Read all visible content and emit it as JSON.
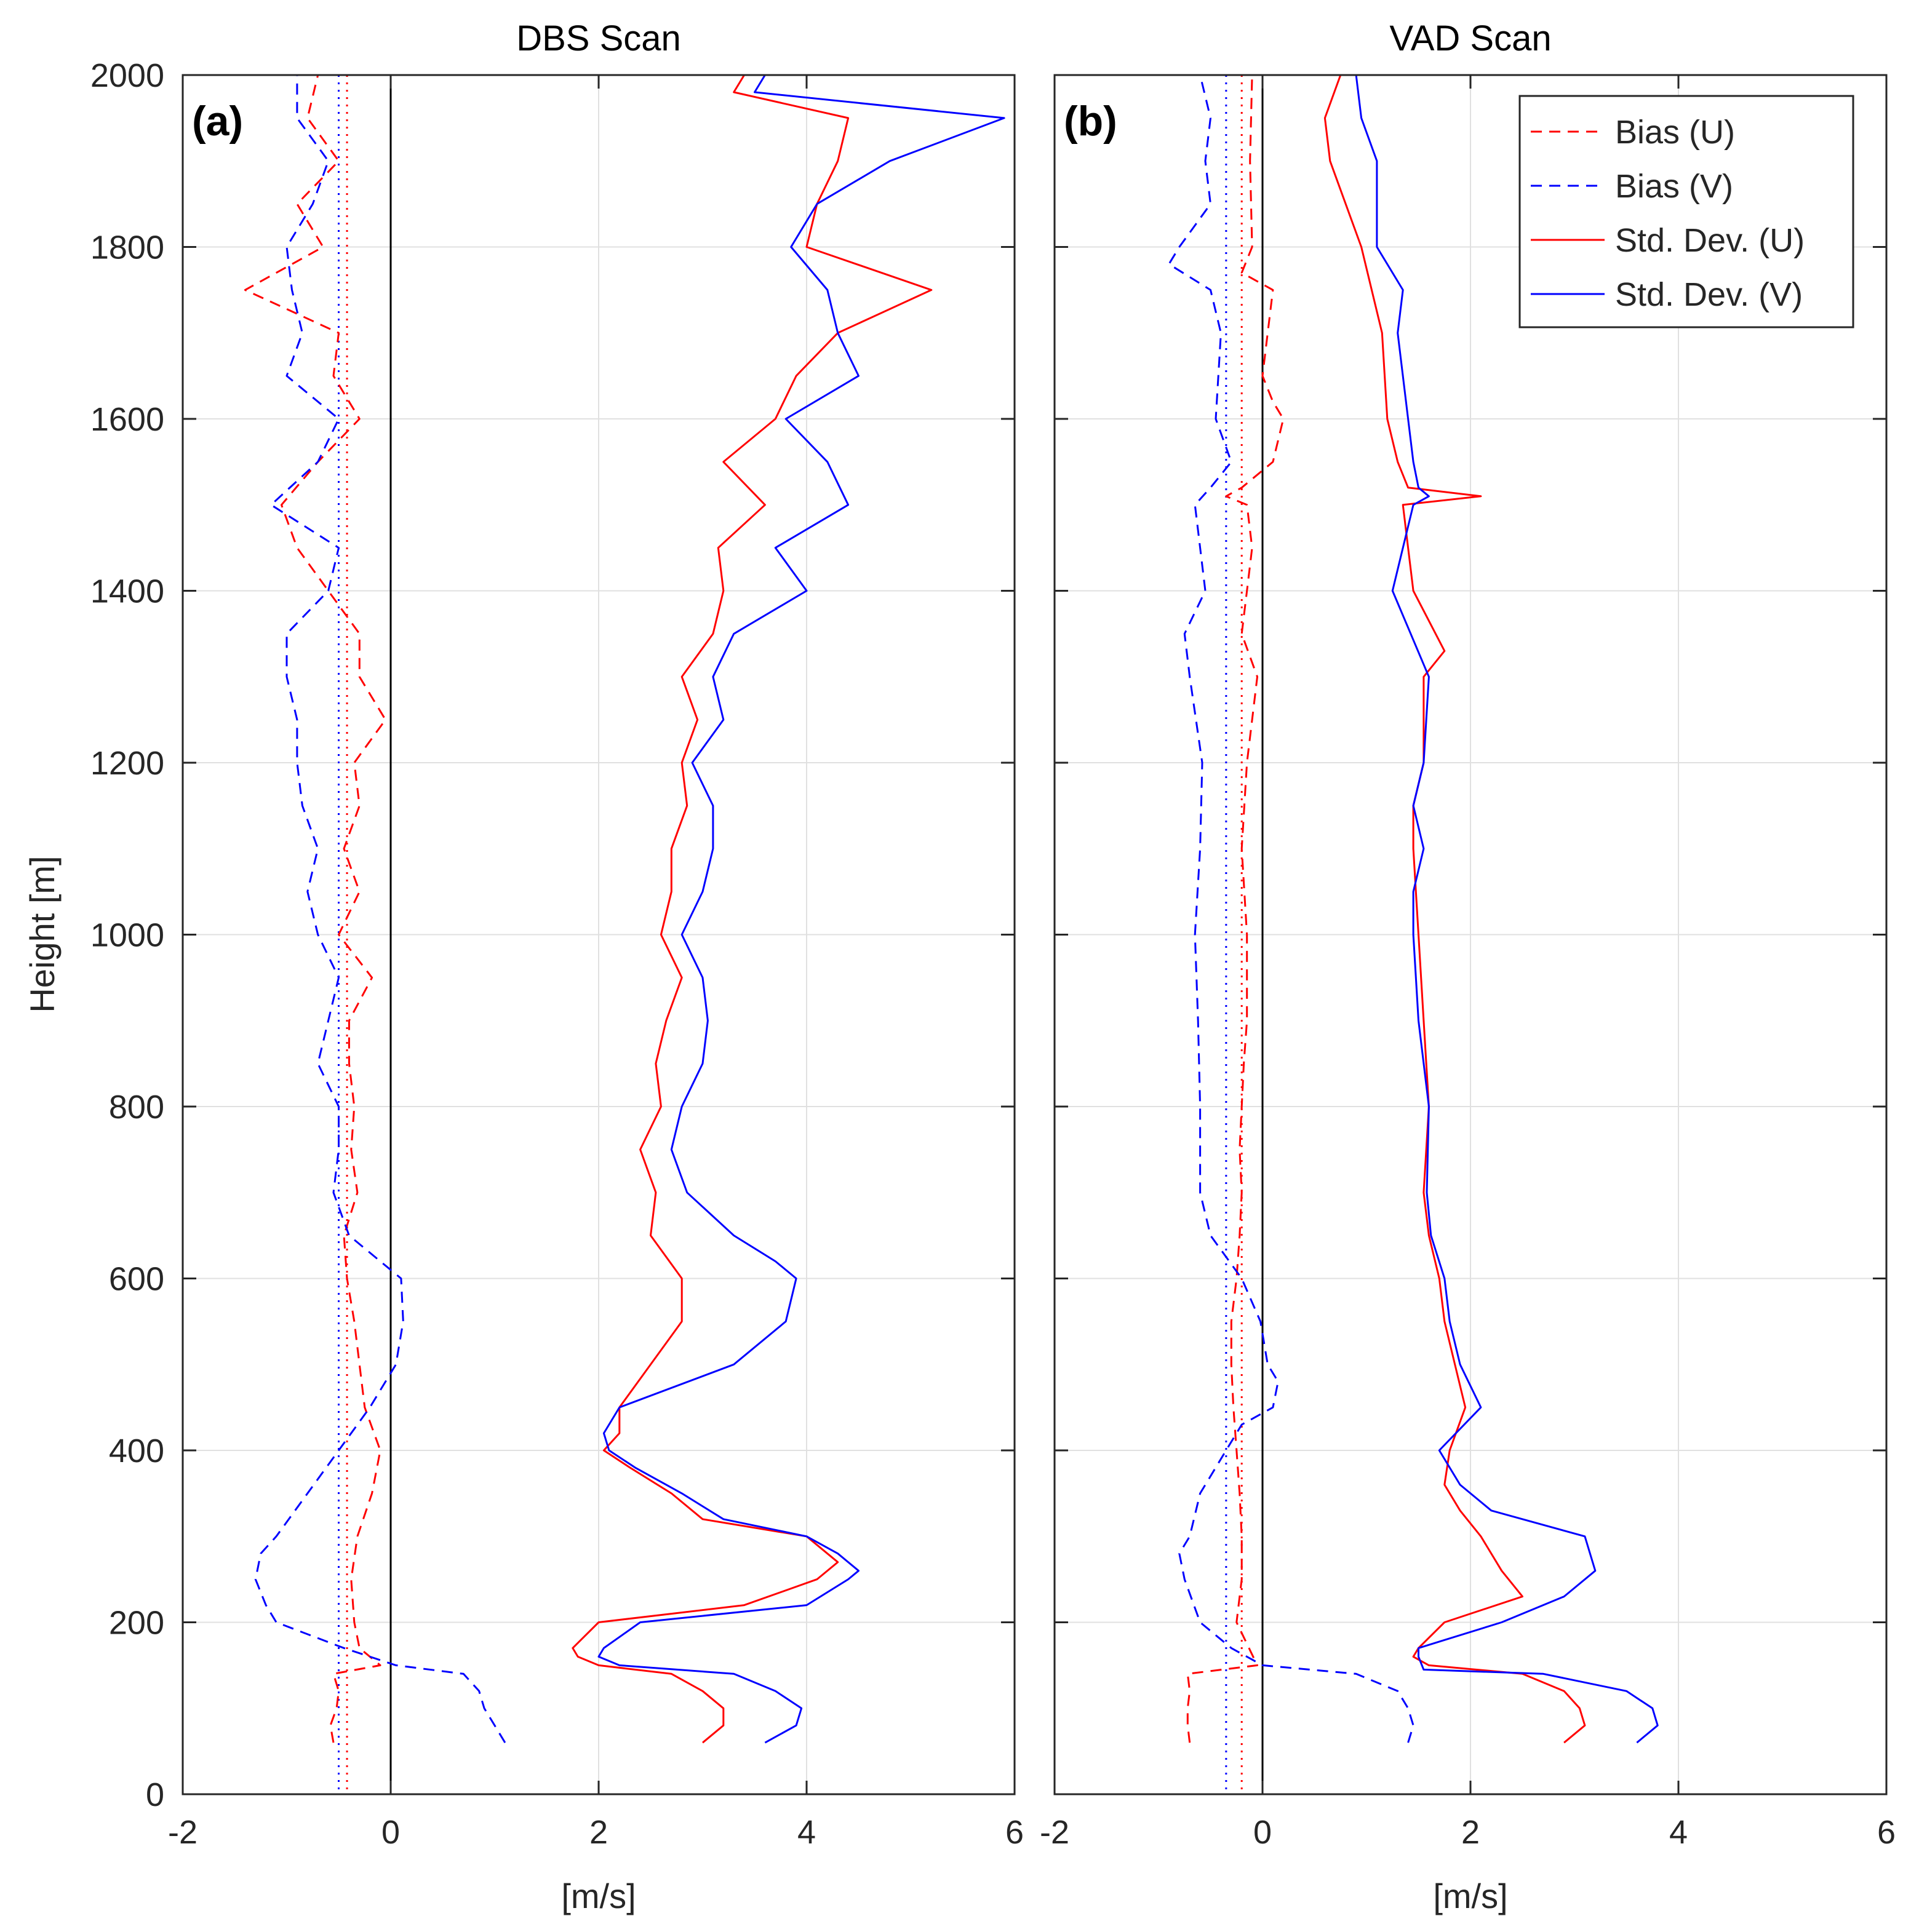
{
  "chart_data": [
    {
      "type": "line",
      "title": "DBS Scan",
      "panel_label": "(a)",
      "xlabel": "[m/s]",
      "ylabel": "Height [m]",
      "xlim": [
        -2,
        6
      ],
      "ylim": [
        0,
        2000
      ],
      "xticks": [
        "-2",
        "0",
        "2",
        "4",
        "6"
      ],
      "yticks": [
        "0",
        "200",
        "400",
        "600",
        "800",
        "1000",
        "1200",
        "1400",
        "1600",
        "1800",
        "2000"
      ],
      "grid": true,
      "mean_lines": [
        {
          "name": "Mean bias (U)",
          "x": -0.42,
          "color": "#ff0000"
        },
        {
          "name": "Mean bias (V)",
          "x": -0.5,
          "color": "#0000ff"
        }
      ],
      "series": [
        {
          "name": "Bias (U)",
          "color": "#ff0000",
          "style": "dashed",
          "height": [
            60,
            80,
            100,
            120,
            140,
            150,
            170,
            200,
            250,
            300,
            350,
            400,
            450,
            500,
            550,
            600,
            650,
            700,
            750,
            800,
            850,
            900,
            950,
            1000,
            1050,
            1100,
            1150,
            1200,
            1250,
            1300,
            1350,
            1400,
            1450,
            1500,
            1550,
            1600,
            1650,
            1700,
            1750,
            1800,
            1850,
            1900,
            1950,
            2000
          ],
          "values": [
            -0.55,
            -0.58,
            -0.52,
            -0.5,
            -0.55,
            -0.1,
            -0.3,
            -0.35,
            -0.38,
            -0.32,
            -0.18,
            -0.1,
            -0.25,
            -0.3,
            -0.35,
            -0.42,
            -0.45,
            -0.32,
            -0.38,
            -0.35,
            -0.4,
            -0.4,
            -0.18,
            -0.5,
            -0.3,
            -0.45,
            -0.3,
            -0.35,
            -0.05,
            -0.3,
            -0.3,
            -0.6,
            -0.9,
            -1.05,
            -0.7,
            -0.3,
            -0.55,
            -0.5,
            -1.4,
            -0.65,
            -0.9,
            -0.5,
            -0.8,
            -0.7
          ]
        },
        {
          "name": "Bias (V)",
          "color": "#0000ff",
          "style": "dashed",
          "height": [
            60,
            80,
            100,
            120,
            140,
            150,
            170,
            200,
            220,
            250,
            280,
            300,
            350,
            400,
            450,
            500,
            550,
            600,
            620,
            650,
            700,
            750,
            800,
            850,
            900,
            950,
            1000,
            1050,
            1100,
            1150,
            1200,
            1250,
            1300,
            1350,
            1400,
            1450,
            1500,
            1550,
            1600,
            1650,
            1700,
            1750,
            1800,
            1850,
            1900,
            1950,
            2000
          ],
          "values": [
            1.1,
            1.0,
            0.9,
            0.85,
            0.7,
            0.05,
            -0.45,
            -1.1,
            -1.2,
            -1.3,
            -1.25,
            -1.1,
            -0.8,
            -0.5,
            -0.2,
            0.05,
            0.12,
            0.1,
            -0.1,
            -0.4,
            -0.55,
            -0.5,
            -0.5,
            -0.7,
            -0.6,
            -0.5,
            -0.7,
            -0.8,
            -0.7,
            -0.85,
            -0.9,
            -0.9,
            -1.0,
            -1.0,
            -0.6,
            -0.5,
            -1.15,
            -0.7,
            -0.5,
            -1.0,
            -0.85,
            -0.95,
            -1.0,
            -0.75,
            -0.6,
            -0.9,
            -0.9
          ]
        },
        {
          "name": "Std. Dev. (U)",
          "color": "#ff0000",
          "style": "solid",
          "height": [
            60,
            80,
            100,
            120,
            140,
            150,
            160,
            170,
            200,
            220,
            250,
            270,
            300,
            320,
            350,
            380,
            400,
            420,
            450,
            500,
            550,
            600,
            650,
            700,
            750,
            800,
            850,
            900,
            950,
            1000,
            1050,
            1100,
            1150,
            1200,
            1250,
            1300,
            1350,
            1400,
            1450,
            1500,
            1550,
            1600,
            1650,
            1700,
            1750,
            1800,
            1850,
            1900,
            1950,
            1980,
            2000
          ],
          "values": [
            3.0,
            3.2,
            3.2,
            3.0,
            2.7,
            2.0,
            1.8,
            1.75,
            2.0,
            3.4,
            4.1,
            4.3,
            4.0,
            3.0,
            2.7,
            2.3,
            2.05,
            2.2,
            2.2,
            2.5,
            2.8,
            2.8,
            2.5,
            2.55,
            2.4,
            2.6,
            2.55,
            2.65,
            2.8,
            2.6,
            2.7,
            2.7,
            2.85,
            2.8,
            2.95,
            2.8,
            3.1,
            3.2,
            3.15,
            3.6,
            3.2,
            3.7,
            3.9,
            4.3,
            5.2,
            4.0,
            4.1,
            4.3,
            4.4,
            3.3,
            3.4
          ]
        },
        {
          "name": "Std. Dev. (V)",
          "color": "#0000ff",
          "style": "solid",
          "height": [
            60,
            80,
            100,
            120,
            140,
            150,
            160,
            170,
            200,
            220,
            250,
            260,
            280,
            300,
            320,
            350,
            380,
            400,
            420,
            450,
            500,
            550,
            600,
            620,
            650,
            700,
            750,
            800,
            850,
            900,
            950,
            1000,
            1050,
            1100,
            1150,
            1200,
            1250,
            1300,
            1350,
            1400,
            1450,
            1500,
            1550,
            1600,
            1650,
            1700,
            1750,
            1800,
            1850,
            1900,
            1950,
            1980,
            2000
          ],
          "values": [
            3.6,
            3.9,
            3.95,
            3.7,
            3.3,
            2.2,
            2.0,
            2.05,
            2.4,
            4.0,
            4.4,
            4.5,
            4.3,
            4.0,
            3.2,
            2.8,
            2.35,
            2.1,
            2.05,
            2.2,
            3.3,
            3.8,
            3.9,
            3.7,
            3.3,
            2.85,
            2.7,
            2.8,
            3.0,
            3.05,
            3.0,
            2.8,
            3.0,
            3.1,
            3.1,
            2.9,
            3.2,
            3.1,
            3.3,
            4.0,
            3.7,
            4.4,
            4.2,
            3.8,
            4.5,
            4.3,
            4.2,
            3.85,
            4.1,
            4.8,
            5.9,
            3.5,
            3.6
          ]
        }
      ]
    },
    {
      "type": "line",
      "title": "VAD Scan",
      "panel_label": "(b)",
      "xlabel": "[m/s]",
      "ylabel": "",
      "xlim": [
        -2,
        6
      ],
      "ylim": [
        0,
        2000
      ],
      "xticks": [
        "-2",
        "0",
        "2",
        "4",
        "6"
      ],
      "yticks": [
        "0",
        "200",
        "400",
        "600",
        "800",
        "1000",
        "1200",
        "1400",
        "1600",
        "1800",
        "2000"
      ],
      "grid": true,
      "mean_lines": [
        {
          "name": "Mean bias (U)",
          "x": -0.2,
          "color": "#ff0000"
        },
        {
          "name": "Mean bias (V)",
          "x": -0.35,
          "color": "#0000ff"
        }
      ],
      "series": [
        {
          "name": "Bias (U)",
          "color": "#ff0000",
          "style": "dashed",
          "height": [
            60,
            80,
            100,
            120,
            140,
            150,
            200,
            250,
            300,
            350,
            400,
            450,
            500,
            550,
            600,
            650,
            700,
            750,
            800,
            850,
            900,
            950,
            1000,
            1100,
            1200,
            1300,
            1350,
            1400,
            1450,
            1500,
            1510,
            1520,
            1550,
            1600,
            1620,
            1650,
            1700,
            1750,
            1770,
            1800,
            1900,
            2000
          ],
          "values": [
            -0.7,
            -0.72,
            -0.72,
            -0.7,
            -0.72,
            -0.05,
            -0.25,
            -0.2,
            -0.2,
            -0.22,
            -0.25,
            -0.28,
            -0.3,
            -0.3,
            -0.25,
            -0.22,
            -0.2,
            -0.22,
            -0.2,
            -0.18,
            -0.15,
            -0.15,
            -0.15,
            -0.2,
            -0.15,
            -0.05,
            -0.2,
            -0.15,
            -0.1,
            -0.15,
            -0.35,
            -0.2,
            0.1,
            0.2,
            0.1,
            0.0,
            0.05,
            0.1,
            -0.2,
            -0.1,
            -0.12,
            -0.1
          ]
        },
        {
          "name": "Bias (V)",
          "color": "#0000ff",
          "style": "dashed",
          "height": [
            60,
            80,
            100,
            120,
            140,
            150,
            170,
            200,
            250,
            280,
            300,
            350,
            400,
            430,
            450,
            480,
            500,
            550,
            600,
            650,
            700,
            800,
            900,
            1000,
            1100,
            1200,
            1300,
            1350,
            1400,
            1450,
            1500,
            1520,
            1550,
            1600,
            1700,
            1750,
            1780,
            1800,
            1850,
            1900,
            1950,
            2000
          ],
          "values": [
            1.4,
            1.45,
            1.4,
            1.3,
            0.9,
            0.0,
            -0.3,
            -0.6,
            -0.75,
            -0.8,
            -0.7,
            -0.6,
            -0.35,
            -0.2,
            0.1,
            0.15,
            0.05,
            -0.02,
            -0.2,
            -0.5,
            -0.6,
            -0.6,
            -0.62,
            -0.65,
            -0.6,
            -0.58,
            -0.7,
            -0.75,
            -0.55,
            -0.6,
            -0.65,
            -0.5,
            -0.3,
            -0.45,
            -0.4,
            -0.5,
            -0.9,
            -0.8,
            -0.5,
            -0.55,
            -0.5,
            -0.6
          ]
        },
        {
          "name": "Std. Dev. (U)",
          "color": "#ff0000",
          "style": "solid",
          "height": [
            60,
            80,
            100,
            120,
            140,
            150,
            160,
            170,
            200,
            230,
            260,
            300,
            330,
            360,
            400,
            450,
            500,
            550,
            600,
            650,
            700,
            800,
            900,
            1000,
            1100,
            1150,
            1200,
            1300,
            1330,
            1400,
            1450,
            1500,
            1510,
            1520,
            1550,
            1600,
            1700,
            1800,
            1900,
            1950,
            2000
          ],
          "values": [
            2.9,
            3.1,
            3.05,
            2.9,
            2.5,
            1.6,
            1.45,
            1.5,
            1.75,
            2.5,
            2.3,
            2.1,
            1.9,
            1.75,
            1.8,
            1.95,
            1.85,
            1.75,
            1.7,
            1.6,
            1.55,
            1.6,
            1.55,
            1.5,
            1.45,
            1.45,
            1.55,
            1.55,
            1.75,
            1.45,
            1.4,
            1.35,
            2.1,
            1.4,
            1.3,
            1.2,
            1.15,
            0.95,
            0.65,
            0.6,
            0.75
          ]
        },
        {
          "name": "Std. Dev. (V)",
          "color": "#0000ff",
          "style": "solid",
          "height": [
            60,
            80,
            100,
            120,
            140,
            145,
            160,
            170,
            200,
            230,
            260,
            300,
            330,
            360,
            400,
            450,
            500,
            550,
            600,
            650,
            700,
            800,
            900,
            1000,
            1050,
            1100,
            1150,
            1200,
            1300,
            1400,
            1450,
            1500,
            1510,
            1520,
            1550,
            1600,
            1700,
            1750,
            1800,
            1900,
            1950,
            2000
          ],
          "values": [
            3.6,
            3.8,
            3.75,
            3.5,
            2.7,
            1.55,
            1.5,
            1.5,
            2.3,
            2.9,
            3.2,
            3.1,
            2.2,
            1.9,
            1.7,
            2.1,
            1.9,
            1.8,
            1.75,
            1.62,
            1.58,
            1.6,
            1.5,
            1.45,
            1.45,
            1.55,
            1.45,
            1.55,
            1.6,
            1.25,
            1.35,
            1.45,
            1.6,
            1.5,
            1.45,
            1.4,
            1.3,
            1.35,
            1.1,
            1.1,
            0.95,
            0.9
          ]
        }
      ]
    }
  ]
}
